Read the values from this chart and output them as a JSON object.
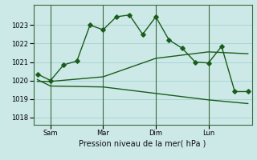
{
  "background_color": "#cce9e8",
  "grid_color": "#99cccc",
  "line_color": "#1a5c1a",
  "xlabel": "Pression niveau de la mer( hPa )",
  "ylim": [
    1017.6,
    1024.1
  ],
  "yticks": [
    1018,
    1019,
    1020,
    1021,
    1022,
    1023
  ],
  "vline_positions": [
    1,
    5,
    9,
    13
  ],
  "vline_labels": [
    "Sam",
    "Mar",
    "Dim",
    "Lun"
  ],
  "s1_x": [
    0,
    1,
    2,
    3,
    4,
    5,
    6,
    7,
    8,
    9,
    10,
    11,
    12,
    13,
    14,
    15,
    16
  ],
  "s1_y": [
    1020.35,
    1020.0,
    1020.85,
    1021.05,
    1023.0,
    1022.75,
    1023.45,
    1023.55,
    1022.5,
    1023.45,
    1022.2,
    1021.75,
    1021.0,
    1020.95,
    1021.85,
    1019.4,
    1019.4
  ],
  "s2_x": [
    0,
    1,
    5,
    9,
    13,
    16
  ],
  "s2_y": [
    1019.95,
    1019.95,
    1020.2,
    1021.2,
    1021.55,
    1021.45
  ],
  "s3_x": [
    0,
    1,
    5,
    9,
    13,
    16
  ],
  "s3_y": [
    1020.05,
    1019.7,
    1019.65,
    1019.3,
    1018.95,
    1018.75
  ],
  "xlim": [
    -0.3,
    16.3
  ],
  "marker_style": "D",
  "marker_size": 2.8,
  "linewidth": 1.0,
  "xlabel_fontsize": 7,
  "tick_labelsize": 6,
  "vline_color": "#3a6b3a",
  "vline_lw": 0.8
}
